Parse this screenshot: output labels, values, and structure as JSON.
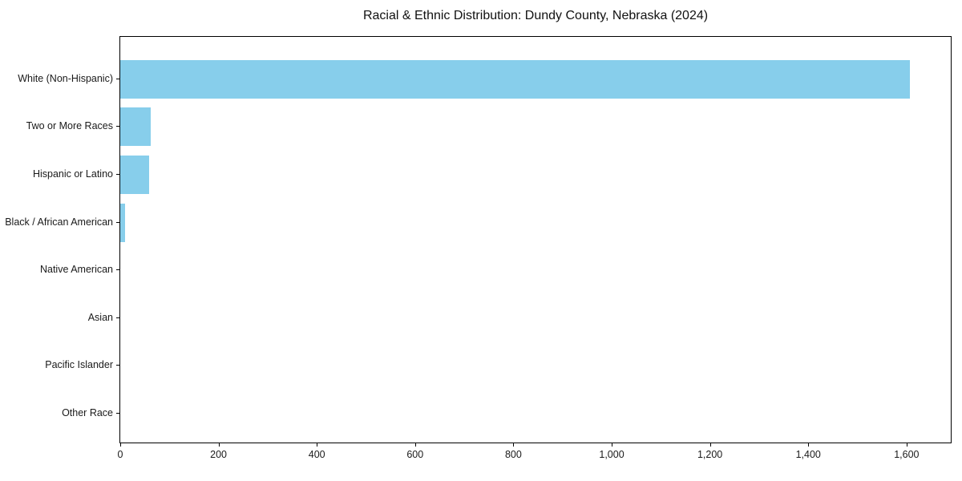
{
  "chart_data": {
    "type": "bar",
    "orientation": "horizontal",
    "title": "Racial & Ethnic Distribution: Dundy County, Nebraska (2024)",
    "categories": [
      "White (Non-Hispanic)",
      "Two or More Races",
      "Hispanic or Latino",
      "Black / African American",
      "Native American",
      "Asian",
      "Pacific Islander",
      "Other Race"
    ],
    "values": [
      1606,
      62,
      58,
      10,
      0,
      0,
      0,
      0
    ],
    "xlabel": "",
    "ylabel": "",
    "xlim": [
      0,
      1690
    ],
    "xticks": [
      0,
      200,
      400,
      600,
      800,
      1000,
      1200,
      1400,
      1600
    ],
    "xtick_labels": [
      "0",
      "200",
      "400",
      "600",
      "800",
      "1,000",
      "1,200",
      "1,400",
      "1,600"
    ],
    "bar_color": "#87CEEB",
    "background_color": "#ffffff",
    "axis_color": "#000000",
    "grid": false,
    "legend": null
  }
}
